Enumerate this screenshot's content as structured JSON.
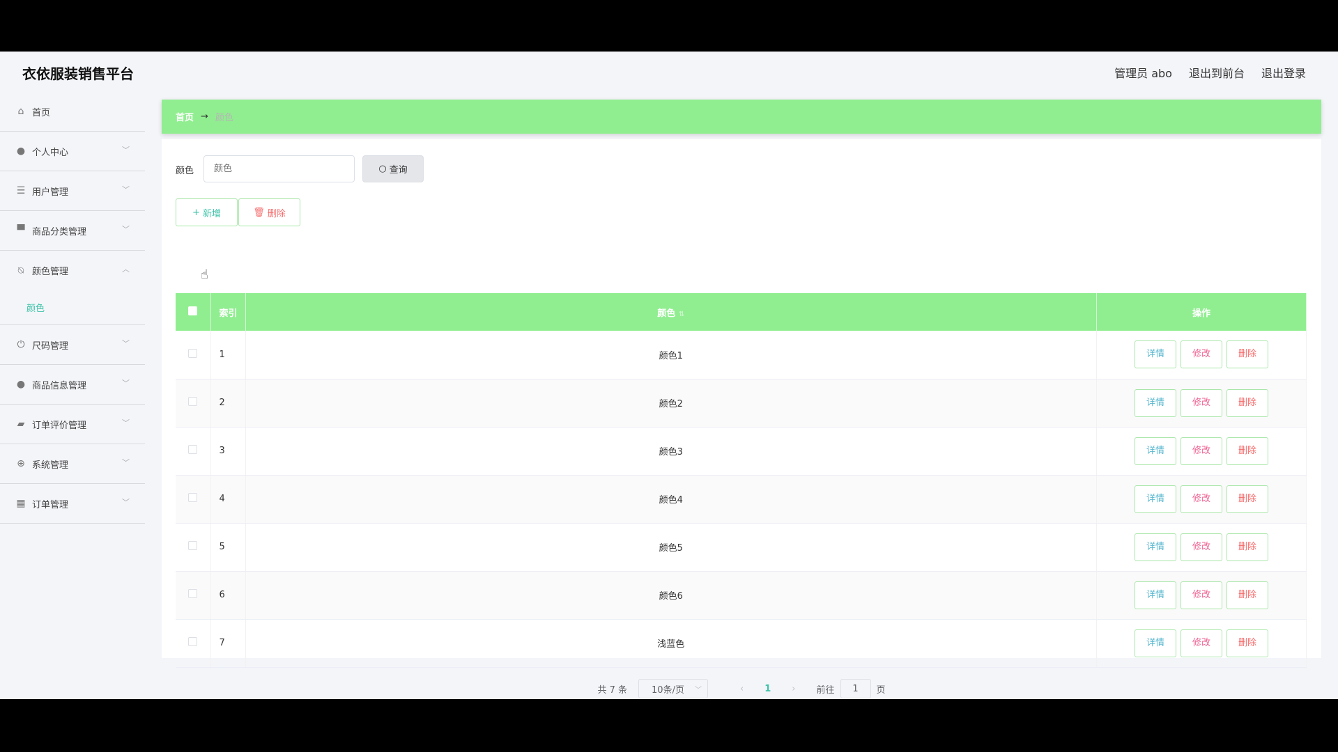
{
  "header": {
    "title": "衣依服装销售平台",
    "admin": "管理员 abo",
    "to_front": "退出到前台",
    "logout": "退出登录"
  },
  "sidebar": {
    "items": [
      {
        "label": "首页",
        "icon": "home-icon"
      },
      {
        "label": "个人中心",
        "icon": "user-icon"
      },
      {
        "label": "用户管理",
        "icon": "list-icon"
      },
      {
        "label": "商品分类管理",
        "icon": "monitor-icon"
      },
      {
        "label": "颜色管理",
        "icon": "bell-off-icon",
        "sub": [
          "颜色"
        ]
      },
      {
        "label": "尺码管理",
        "icon": "power-icon"
      },
      {
        "label": "商品信息管理",
        "icon": "user-icon"
      },
      {
        "label": "订单评价管理",
        "icon": "wallet-icon"
      },
      {
        "label": "系统管理",
        "icon": "crosshair-icon"
      },
      {
        "label": "订单管理",
        "icon": "grid-icon"
      }
    ]
  },
  "breadcrumb": {
    "home": "首页",
    "arrow": "→",
    "current": "颜色"
  },
  "search": {
    "label": "颜色",
    "placeholder": "颜色",
    "button": "查询"
  },
  "actions": {
    "add": "新增",
    "delete": "删除"
  },
  "table": {
    "headers": [
      "索引",
      "颜色",
      "操作"
    ],
    "rows": [
      {
        "index": "1",
        "color": "颜色1"
      },
      {
        "index": "2",
        "color": "颜色2"
      },
      {
        "index": "3",
        "color": "颜色3"
      },
      {
        "index": "4",
        "color": "颜色4"
      },
      {
        "index": "5",
        "color": "颜色5"
      },
      {
        "index": "6",
        "color": "颜色6"
      },
      {
        "index": "7",
        "color": "浅蓝色"
      }
    ],
    "ops": {
      "detail": "详情",
      "edit": "修改",
      "delete": "删除"
    }
  },
  "pagination": {
    "total": "共 7 条",
    "page_size": "10条/页",
    "current": "1",
    "goto_label": "前往",
    "goto_value": "1",
    "page_suffix": "页"
  },
  "colors": {
    "accent": "#90ee90",
    "teal": "#3cc3a8",
    "danger": "#f56c6c"
  }
}
